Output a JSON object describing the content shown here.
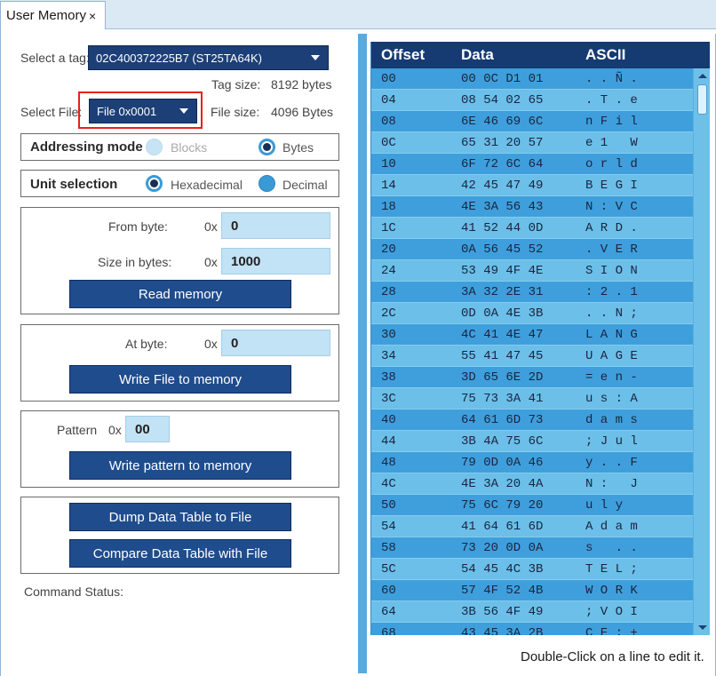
{
  "tab": {
    "title": "User Memory",
    "close_glyph": "×"
  },
  "tag": {
    "label": "Select a tag:",
    "value": "02C400372225B7 (ST25TA64K)",
    "size_label": "Tag size:",
    "size_value": "8192 bytes"
  },
  "file": {
    "label": "Select File:",
    "value": "File 0x0001",
    "size_label": "File size:",
    "size_value": "4096 Bytes"
  },
  "addressing": {
    "title": "Addressing mode",
    "options": [
      "Blocks",
      "Bytes"
    ],
    "selected": "Bytes"
  },
  "unit": {
    "title": "Unit selection",
    "options": [
      "Hexadecimal",
      "Decimal"
    ],
    "selected": "Hexadecimal"
  },
  "read": {
    "from_label": "From byte:",
    "from_prefix": "0x",
    "from_value": "0",
    "size_label": "Size in bytes:",
    "size_prefix": "0x",
    "size_value": "1000",
    "button": "Read memory"
  },
  "write_file": {
    "at_label": "At byte:",
    "at_prefix": "0x",
    "at_value": "0",
    "button": "Write File to memory"
  },
  "pattern": {
    "label": "Pattern",
    "prefix": "0x",
    "value": "00",
    "button": "Write pattern to memory"
  },
  "dump_button": "Dump Data Table to File",
  "compare_button": "Compare Data Table with File",
  "command_status_label": "Command Status:",
  "table": {
    "headers": [
      "Offset",
      "Data",
      "ASCII"
    ],
    "rows": [
      {
        "offset": "00",
        "data": "00 0C D1 01",
        "ascii": ". . Ñ ."
      },
      {
        "offset": "04",
        "data": "08 54 02 65",
        "ascii": ". T . e"
      },
      {
        "offset": "08",
        "data": "6E 46 69 6C",
        "ascii": "n F i l"
      },
      {
        "offset": "0C",
        "data": "65 31 20 57",
        "ascii": "e 1   W"
      },
      {
        "offset": "10",
        "data": "6F 72 6C 64",
        "ascii": "o r l d"
      },
      {
        "offset": "14",
        "data": "42 45 47 49",
        "ascii": "B E G I"
      },
      {
        "offset": "18",
        "data": "4E 3A 56 43",
        "ascii": "N : V C"
      },
      {
        "offset": "1C",
        "data": "41 52 44 0D",
        "ascii": "A R D ."
      },
      {
        "offset": "20",
        "data": "0A 56 45 52",
        "ascii": ". V E R"
      },
      {
        "offset": "24",
        "data": "53 49 4F 4E",
        "ascii": "S I O N"
      },
      {
        "offset": "28",
        "data": "3A 32 2E 31",
        "ascii": ": 2 . 1"
      },
      {
        "offset": "2C",
        "data": "0D 0A 4E 3B",
        "ascii": ". . N ;"
      },
      {
        "offset": "30",
        "data": "4C 41 4E 47",
        "ascii": "L A N G"
      },
      {
        "offset": "34",
        "data": "55 41 47 45",
        "ascii": "U A G E"
      },
      {
        "offset": "38",
        "data": "3D 65 6E 2D",
        "ascii": "= e n -"
      },
      {
        "offset": "3C",
        "data": "75 73 3A 41",
        "ascii": "u s : A"
      },
      {
        "offset": "40",
        "data": "64 61 6D 73",
        "ascii": "d a m s"
      },
      {
        "offset": "44",
        "data": "3B 4A 75 6C",
        "ascii": "; J u l"
      },
      {
        "offset": "48",
        "data": "79 0D 0A 46",
        "ascii": "y . . F"
      },
      {
        "offset": "4C",
        "data": "4E 3A 20 4A",
        "ascii": "N :   J"
      },
      {
        "offset": "50",
        "data": "75 6C 79 20",
        "ascii": "u l y  "
      },
      {
        "offset": "54",
        "data": "41 64 61 6D",
        "ascii": "A d a m"
      },
      {
        "offset": "58",
        "data": "73 20 0D 0A",
        "ascii": "s   . ."
      },
      {
        "offset": "5C",
        "data": "54 45 4C 3B",
        "ascii": "T E L ;"
      },
      {
        "offset": "60",
        "data": "57 4F 52 4B",
        "ascii": "W O R K"
      },
      {
        "offset": "64",
        "data": "3B 56 4F 49",
        "ascii": "; V O I"
      },
      {
        "offset": "68",
        "data": "43 45 3A 2B",
        "ascii": "C E : +"
      }
    ]
  },
  "hint": "Double-Click on a line to edit it."
}
